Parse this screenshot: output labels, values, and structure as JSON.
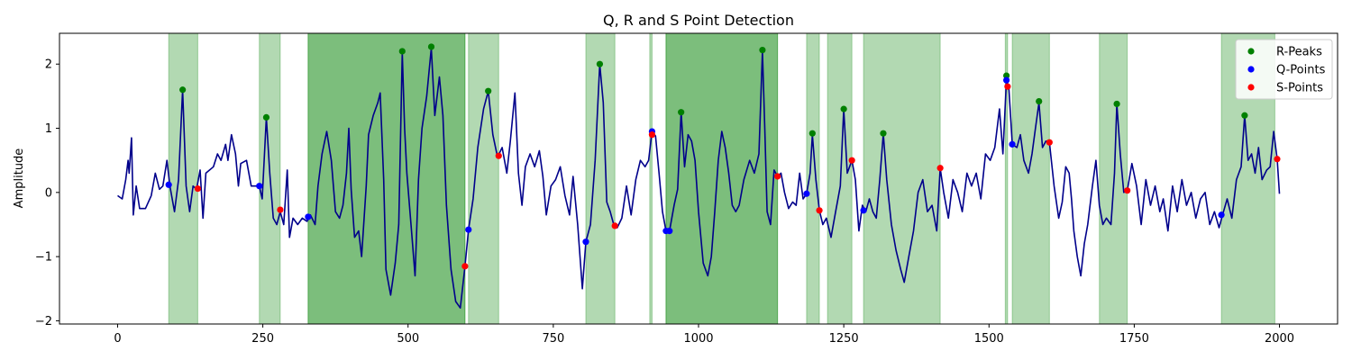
{
  "chart_data": {
    "type": "line",
    "title": "Q, R and S Point Detection",
    "xlabel": "",
    "ylabel": "Amplitude",
    "xlim": [
      -100,
      2100
    ],
    "ylim": [
      -2.05,
      2.48
    ],
    "xticks": [
      0,
      250,
      500,
      750,
      1000,
      1250,
      1500,
      1750,
      2000
    ],
    "yticks": [
      -2,
      -1,
      0,
      1,
      2
    ],
    "ytick_labels": [
      "−2",
      "−1",
      "0",
      "1",
      "2"
    ],
    "legend_position": "top-right",
    "colors": {
      "signal": "#00008b",
      "r_peaks": "#008000",
      "q_points": "#0000ff",
      "s_points": "#ff0000",
      "highlight": "#008000"
    },
    "signal_anchors": [
      [
        0,
        -0.05
      ],
      [
        8,
        -0.1
      ],
      [
        14,
        0.2
      ],
      [
        18,
        0.5
      ],
      [
        20,
        0.3
      ],
      [
        24,
        0.85
      ],
      [
        27,
        -0.35
      ],
      [
        32,
        0.1
      ],
      [
        38,
        -0.25
      ],
      [
        48,
        -0.25
      ],
      [
        58,
        -0.05
      ],
      [
        65,
        0.3
      ],
      [
        72,
        0.05
      ],
      [
        78,
        0.1
      ],
      [
        85,
        0.5
      ],
      [
        90,
        0.1
      ],
      [
        98,
        -0.3
      ],
      [
        105,
        0.2
      ],
      [
        112,
        1.6
      ],
      [
        118,
        0.1
      ],
      [
        124,
        -0.3
      ],
      [
        130,
        0.1
      ],
      [
        136,
        0.05
      ],
      [
        142,
        0.35
      ],
      [
        147,
        -0.4
      ],
      [
        152,
        0.3
      ],
      [
        165,
        0.4
      ],
      [
        172,
        0.6
      ],
      [
        178,
        0.5
      ],
      [
        186,
        0.75
      ],
      [
        190,
        0.5
      ],
      [
        196,
        0.9
      ],
      [
        203,
        0.6
      ],
      [
        208,
        0.1
      ],
      [
        212,
        0.45
      ],
      [
        222,
        0.5
      ],
      [
        230,
        0.1
      ],
      [
        238,
        0.1
      ],
      [
        244,
        0.1
      ],
      [
        249,
        -0.1
      ],
      [
        256,
        1.17
      ],
      [
        262,
        0.3
      ],
      [
        268,
        -0.4
      ],
      [
        274,
        -0.5
      ],
      [
        280,
        -0.3
      ],
      [
        286,
        -0.5
      ],
      [
        292,
        0.35
      ],
      [
        296,
        -0.7
      ],
      [
        302,
        -0.4
      ],
      [
        310,
        -0.5
      ],
      [
        318,
        -0.4
      ],
      [
        326,
        -0.45
      ],
      [
        332,
        -0.35
      ],
      [
        340,
        -0.5
      ],
      [
        345,
        0.1
      ],
      [
        352,
        0.6
      ],
      [
        360,
        0.95
      ],
      [
        368,
        0.5
      ],
      [
        375,
        -0.3
      ],
      [
        382,
        -0.4
      ],
      [
        388,
        -0.2
      ],
      [
        394,
        0.3
      ],
      [
        398,
        1.0
      ],
      [
        402,
        0.05
      ],
      [
        408,
        -0.7
      ],
      [
        415,
        -0.6
      ],
      [
        420,
        -1.0
      ],
      [
        428,
        0.1
      ],
      [
        432,
        0.9
      ],
      [
        440,
        1.2
      ],
      [
        448,
        1.4
      ],
      [
        452,
        1.55
      ],
      [
        458,
        0.2
      ],
      [
        462,
        -1.2
      ],
      [
        470,
        -1.6
      ],
      [
        478,
        -1.1
      ],
      [
        484,
        -0.5
      ],
      [
        490,
        2.18
      ],
      [
        494,
        1.0
      ],
      [
        498,
        0.3
      ],
      [
        505,
        -0.5
      ],
      [
        512,
        -1.3
      ],
      [
        518,
        0.2
      ],
      [
        524,
        1.0
      ],
      [
        532,
        1.5
      ],
      [
        540,
        2.25
      ],
      [
        546,
        1.2
      ],
      [
        554,
        1.8
      ],
      [
        560,
        1.2
      ],
      [
        566,
        -0.2
      ],
      [
        574,
        -1.2
      ],
      [
        582,
        -1.7
      ],
      [
        590,
        -1.8
      ],
      [
        598,
        -1.15
      ],
      [
        604,
        -0.58
      ],
      [
        612,
        -0.1
      ],
      [
        620,
        0.7
      ],
      [
        630,
        1.3
      ],
      [
        638,
        1.58
      ],
      [
        646,
        0.9
      ],
      [
        654,
        0.55
      ],
      [
        662,
        0.7
      ],
      [
        670,
        0.3
      ],
      [
        676,
        0.8
      ],
      [
        684,
        1.55
      ],
      [
        690,
        0.3
      ],
      [
        696,
        -0.2
      ],
      [
        702,
        0.4
      ],
      [
        710,
        0.6
      ],
      [
        718,
        0.4
      ],
      [
        726,
        0.65
      ],
      [
        732,
        0.25
      ],
      [
        738,
        -0.35
      ],
      [
        746,
        0.1
      ],
      [
        754,
        0.2
      ],
      [
        762,
        0.4
      ],
      [
        770,
        -0.05
      ],
      [
        778,
        -0.35
      ],
      [
        784,
        0.25
      ],
      [
        792,
        -0.5
      ],
      [
        800,
        -1.5
      ],
      [
        806,
        -0.77
      ],
      [
        814,
        -0.5
      ],
      [
        822,
        0.5
      ],
      [
        830,
        2.0
      ],
      [
        836,
        1.4
      ],
      [
        842,
        -0.15
      ],
      [
        848,
        -0.3
      ],
      [
        854,
        -0.5
      ],
      [
        860,
        -0.55
      ],
      [
        868,
        -0.4
      ],
      [
        876,
        0.1
      ],
      [
        884,
        -0.35
      ],
      [
        892,
        0.2
      ],
      [
        900,
        0.5
      ],
      [
        908,
        0.4
      ],
      [
        914,
        0.5
      ],
      [
        920,
        0.95
      ],
      [
        926,
        0.88
      ],
      [
        932,
        0.3
      ],
      [
        938,
        -0.3
      ],
      [
        944,
        -0.6
      ],
      [
        950,
        -0.6
      ],
      [
        958,
        -0.2
      ],
      [
        964,
        0.05
      ],
      [
        970,
        1.25
      ],
      [
        976,
        0.4
      ],
      [
        982,
        0.9
      ],
      [
        988,
        0.8
      ],
      [
        994,
        0.5
      ],
      [
        1000,
        -0.3
      ],
      [
        1008,
        -1.1
      ],
      [
        1016,
        -1.3
      ],
      [
        1022,
        -1.0
      ],
      [
        1028,
        -0.3
      ],
      [
        1034,
        0.5
      ],
      [
        1040,
        0.95
      ],
      [
        1046,
        0.7
      ],
      [
        1052,
        0.3
      ],
      [
        1058,
        -0.2
      ],
      [
        1064,
        -0.3
      ],
      [
        1070,
        -0.2
      ],
      [
        1078,
        0.2
      ],
      [
        1088,
        0.5
      ],
      [
        1096,
        0.3
      ],
      [
        1104,
        0.6
      ],
      [
        1110,
        2.2
      ],
      [
        1114,
        1.0
      ],
      [
        1118,
        -0.3
      ],
      [
        1124,
        -0.5
      ],
      [
        1130,
        0.35
      ],
      [
        1136,
        0.25
      ],
      [
        1142,
        0.3
      ],
      [
        1148,
        0.0
      ],
      [
        1155,
        -0.25
      ],
      [
        1162,
        -0.15
      ],
      [
        1168,
        -0.2
      ],
      [
        1174,
        0.3
      ],
      [
        1180,
        -0.1
      ],
      [
        1186,
        -0.02
      ],
      [
        1192,
        0.3
      ],
      [
        1196,
        0.9
      ],
      [
        1202,
        0.2
      ],
      [
        1208,
        -0.28
      ],
      [
        1214,
        -0.5
      ],
      [
        1220,
        -0.4
      ],
      [
        1228,
        -0.7
      ],
      [
        1236,
        -0.3
      ],
      [
        1244,
        0.1
      ],
      [
        1250,
        1.3
      ],
      [
        1256,
        0.3
      ],
      [
        1264,
        0.5
      ],
      [
        1270,
        0.2
      ],
      [
        1276,
        -0.6
      ],
      [
        1282,
        -0.2
      ],
      [
        1288,
        -0.3
      ],
      [
        1294,
        -0.1
      ],
      [
        1300,
        -0.3
      ],
      [
        1306,
        -0.4
      ],
      [
        1312,
        0.2
      ],
      [
        1318,
        0.92
      ],
      [
        1324,
        0.2
      ],
      [
        1332,
        -0.5
      ],
      [
        1340,
        -0.9
      ],
      [
        1348,
        -1.2
      ],
      [
        1354,
        -1.4
      ],
      [
        1362,
        -1.0
      ],
      [
        1370,
        -0.6
      ],
      [
        1378,
        0.0
      ],
      [
        1386,
        0.2
      ],
      [
        1394,
        -0.3
      ],
      [
        1402,
        -0.2
      ],
      [
        1410,
        -0.6
      ],
      [
        1416,
        0.38
      ],
      [
        1422,
        0.0
      ],
      [
        1430,
        -0.4
      ],
      [
        1438,
        0.2
      ],
      [
        1446,
        0.0
      ],
      [
        1454,
        -0.3
      ],
      [
        1462,
        0.3
      ],
      [
        1470,
        0.1
      ],
      [
        1478,
        0.3
      ],
      [
        1486,
        -0.1
      ],
      [
        1494,
        0.6
      ],
      [
        1502,
        0.5
      ],
      [
        1510,
        0.7
      ],
      [
        1518,
        1.3
      ],
      [
        1524,
        0.6
      ],
      [
        1530,
        1.75
      ],
      [
        1534,
        1.65
      ],
      [
        1540,
        0.75
      ],
      [
        1548,
        0.7
      ],
      [
        1554,
        0.9
      ],
      [
        1560,
        0.5
      ],
      [
        1568,
        0.3
      ],
      [
        1574,
        0.6
      ],
      [
        1580,
        1.0
      ],
      [
        1586,
        1.4
      ],
      [
        1592,
        0.7
      ],
      [
        1598,
        0.8
      ],
      [
        1604,
        0.78
      ],
      [
        1612,
        0.1
      ],
      [
        1620,
        -0.4
      ],
      [
        1626,
        -0.15
      ],
      [
        1632,
        0.4
      ],
      [
        1638,
        0.3
      ],
      [
        1642,
        -0.1
      ],
      [
        1646,
        -0.6
      ],
      [
        1652,
        -1.0
      ],
      [
        1658,
        -1.3
      ],
      [
        1664,
        -0.8
      ],
      [
        1670,
        -0.5
      ],
      [
        1678,
        0.1
      ],
      [
        1684,
        0.5
      ],
      [
        1690,
        -0.2
      ],
      [
        1696,
        -0.5
      ],
      [
        1702,
        -0.4
      ],
      [
        1710,
        -0.5
      ],
      [
        1716,
        0.3
      ],
      [
        1720,
        1.38
      ],
      [
        1726,
        0.6
      ],
      [
        1732,
        0.0
      ],
      [
        1738,
        0.03
      ],
      [
        1746,
        0.45
      ],
      [
        1754,
        0.1
      ],
      [
        1762,
        -0.5
      ],
      [
        1770,
        0.2
      ],
      [
        1778,
        -0.2
      ],
      [
        1786,
        0.1
      ],
      [
        1794,
        -0.3
      ],
      [
        1800,
        -0.1
      ],
      [
        1808,
        -0.6
      ],
      [
        1816,
        0.1
      ],
      [
        1824,
        -0.3
      ],
      [
        1832,
        0.2
      ],
      [
        1840,
        -0.2
      ],
      [
        1848,
        0.0
      ],
      [
        1856,
        -0.4
      ],
      [
        1864,
        -0.1
      ],
      [
        1872,
        0.0
      ],
      [
        1880,
        -0.5
      ],
      [
        1888,
        -0.3
      ],
      [
        1896,
        -0.55
      ],
      [
        1902,
        -0.35
      ],
      [
        1910,
        -0.1
      ],
      [
        1918,
        -0.4
      ],
      [
        1926,
        0.2
      ],
      [
        1934,
        0.4
      ],
      [
        1940,
        1.2
      ],
      [
        1946,
        0.5
      ],
      [
        1952,
        0.6
      ],
      [
        1958,
        0.3
      ],
      [
        1964,
        0.7
      ],
      [
        1970,
        0.2
      ],
      [
        1978,
        0.35
      ],
      [
        1984,
        0.4
      ],
      [
        1990,
        0.95
      ],
      [
        1996,
        0.52
      ],
      [
        2000,
        -0.02
      ]
    ],
    "series": [
      {
        "name": "R-Peaks",
        "marker": "circle",
        "color": "#008000",
        "points": [
          [
            112,
            1.6
          ],
          [
            256,
            1.17
          ],
          [
            490,
            2.2
          ],
          [
            540,
            2.27
          ],
          [
            638,
            1.58
          ],
          [
            830,
            2.0
          ],
          [
            970,
            1.25
          ],
          [
            1110,
            2.22
          ],
          [
            1196,
            0.92
          ],
          [
            1250,
            1.3
          ],
          [
            1318,
            0.92
          ],
          [
            1530,
            1.82
          ],
          [
            1586,
            1.42
          ],
          [
            1720,
            1.38
          ],
          [
            1940,
            1.2
          ]
        ]
      },
      {
        "name": "Q-Points",
        "marker": "circle",
        "color": "#0000ff",
        "points": [
          [
            88,
            0.12
          ],
          [
            244,
            0.1
          ],
          [
            328,
            -0.38
          ],
          [
            604,
            -0.58
          ],
          [
            806,
            -0.77
          ],
          [
            920,
            0.95
          ],
          [
            944,
            -0.6
          ],
          [
            950,
            -0.6
          ],
          [
            1186,
            -0.02
          ],
          [
            1284,
            -0.28
          ],
          [
            1530,
            1.75
          ],
          [
            1540,
            0.75
          ],
          [
            1900,
            -0.35
          ]
        ]
      },
      {
        "name": "S-Points",
        "marker": "circle",
        "color": "#ff0000",
        "points": [
          [
            138,
            0.06
          ],
          [
            280,
            -0.27
          ],
          [
            598,
            -1.15
          ],
          [
            656,
            0.57
          ],
          [
            856,
            -0.52
          ],
          [
            920,
            0.9
          ],
          [
            1136,
            0.25
          ],
          [
            1208,
            -0.28
          ],
          [
            1264,
            0.5
          ],
          [
            1416,
            0.38
          ],
          [
            1532,
            1.65
          ],
          [
            1604,
            0.78
          ],
          [
            1738,
            0.03
          ],
          [
            1996,
            0.52
          ]
        ]
      }
    ],
    "highlight_spans": [
      [
        88,
        138
      ],
      [
        244,
        280
      ],
      [
        328,
        598
      ],
      [
        328,
        598
      ],
      [
        604,
        656
      ],
      [
        806,
        856
      ],
      [
        916,
        920
      ],
      [
        944,
        1136
      ],
      [
        944,
        1136
      ],
      [
        1186,
        1208
      ],
      [
        1222,
        1264
      ],
      [
        1284,
        1416
      ],
      [
        1528,
        1532
      ],
      [
        1540,
        1604
      ],
      [
        1690,
        1738
      ],
      [
        1900,
        1992
      ]
    ],
    "highlight_alpha": 0.3
  }
}
